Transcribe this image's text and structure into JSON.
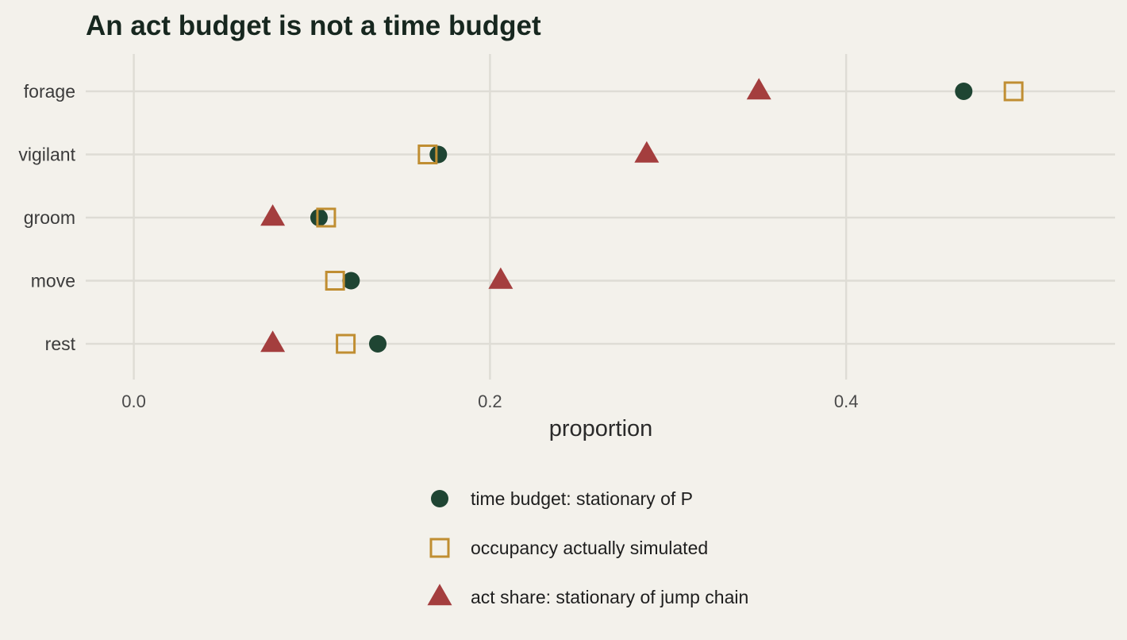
{
  "chart_data": {
    "type": "scatter",
    "title": "An act budget is not a time budget",
    "xlabel": "proportion",
    "ylabel": "",
    "categories": [
      "forage",
      "vigilant",
      "groom",
      "move",
      "rest"
    ],
    "xlim": [
      -0.027,
      0.551
    ],
    "xticks": [
      0.0,
      0.2,
      0.4
    ],
    "xtick_labels": [
      "0.0",
      "0.2",
      "0.4"
    ],
    "grid": true,
    "legend_position": "bottom",
    "series": [
      {
        "name": "time budget: stationary of P",
        "shape": "circle",
        "color": "#1f4533",
        "values": [
          0.466,
          0.171,
          0.104,
          0.122,
          0.137
        ]
      },
      {
        "name": "occupancy actually simulated",
        "shape": "square-open",
        "color": "#c08e32",
        "values": [
          0.494,
          0.165,
          0.108,
          0.113,
          0.119
        ]
      },
      {
        "name": "act share: stationary of jump chain",
        "shape": "triangle",
        "color": "#a43e3e",
        "values": [
          0.351,
          0.288,
          0.078,
          0.206,
          0.078
        ]
      }
    ]
  }
}
